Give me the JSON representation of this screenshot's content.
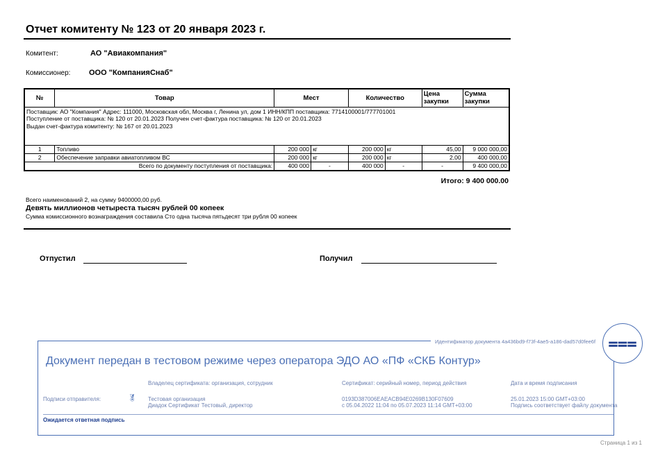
{
  "title": "Отчет комитенту № 123 от 20  января 2023 г.",
  "parties": {
    "committent_label": "Комитент:",
    "committent": "АО \"Авиакомпания\"",
    "commissioner_label": "Комиссионер:",
    "commissioner": "ООО \"КомпанияСнаб\""
  },
  "table": {
    "headers": [
      "№",
      "Товар",
      "Мест",
      "Количество",
      "Цена закупки",
      "Сумма закупки"
    ],
    "info": [
      "Поставщик: АО \"Компания\" Адрес: 111000, Московская обл, Москва г, Ленина ул, дом 1 ИНН/КПП поставщика: 7714100001/777701001",
      "Поступление от поставщика: № 120 от 20.01.2023 Получен счет-фактура поставщика: №  120 от 20.01.2023",
      "Выдан счет-фактура комитенту: № 167 от 20.01.2023"
    ],
    "rows": [
      {
        "n": "1",
        "name": "Топливо",
        "places": "200 000",
        "places_unit": "кг",
        "qty": "200 000",
        "qty_unit": "кг",
        "price": "45,00",
        "sum": "9 000 000,00"
      },
      {
        "n": "2",
        "name": "Обеспечение заправки авиатопливом ВС",
        "places": "200 000",
        "places_unit": "кг",
        "qty": "200 000",
        "qty_unit": "кг",
        "price": "2,00",
        "sum": "400 000,00"
      }
    ],
    "total": {
      "label": "Всего по документу поступления от поставщика:",
      "places": "400 000",
      "places_unit": "-",
      "qty": "400 000",
      "qty_unit": "-",
      "price": "-",
      "sum": "9 400 000,00"
    }
  },
  "itogo": "Итого:  9 400 000.00",
  "summary": {
    "line1": "Всего наименований 2, на сумму 9400000,00 руб.",
    "words": "Девять миллионов четыреста тысяч рублей 00 копеек",
    "commission": "Сумма комиссионного вознаграждения составила Сто одна тысяча пятьдесят три рубля 00 копеек"
  },
  "signatures": {
    "released": "Отпустил",
    "received": "Получил"
  },
  "edo": {
    "doc_id": "Идентификатор документа 4a436bd9-f73f-4ae5-a186-dad57d0fee6f",
    "heading": "Документ передан в тестовом режиме через оператора ЭДО АО «ПФ «СКБ Контур»",
    "col_owner": "Владелец сертификата: организация, сотрудник",
    "col_cert": "Сертификат: серийный номер, период действия",
    "col_date": "Дата и время подписания",
    "sender_label": "Подписи отправителя:",
    "owner_org": "Тестовая организация",
    "owner_person": "Диадок Сертификат Тестовый, директор",
    "cert_serial": "0193D387006EAEACB94E0269B130F07609",
    "cert_period": "с 05.04.2022 11:04 по 05.07.2023 11:14 GMT+03:00",
    "sign_date": "25.01.2023 15:00 GMT+03:00",
    "sign_status": "Подпись соответствует файлу документа",
    "awaiting": "Ожидается ответная подпись",
    "accent": "#4a6fb5"
  },
  "page": "Страница 1 из 1"
}
